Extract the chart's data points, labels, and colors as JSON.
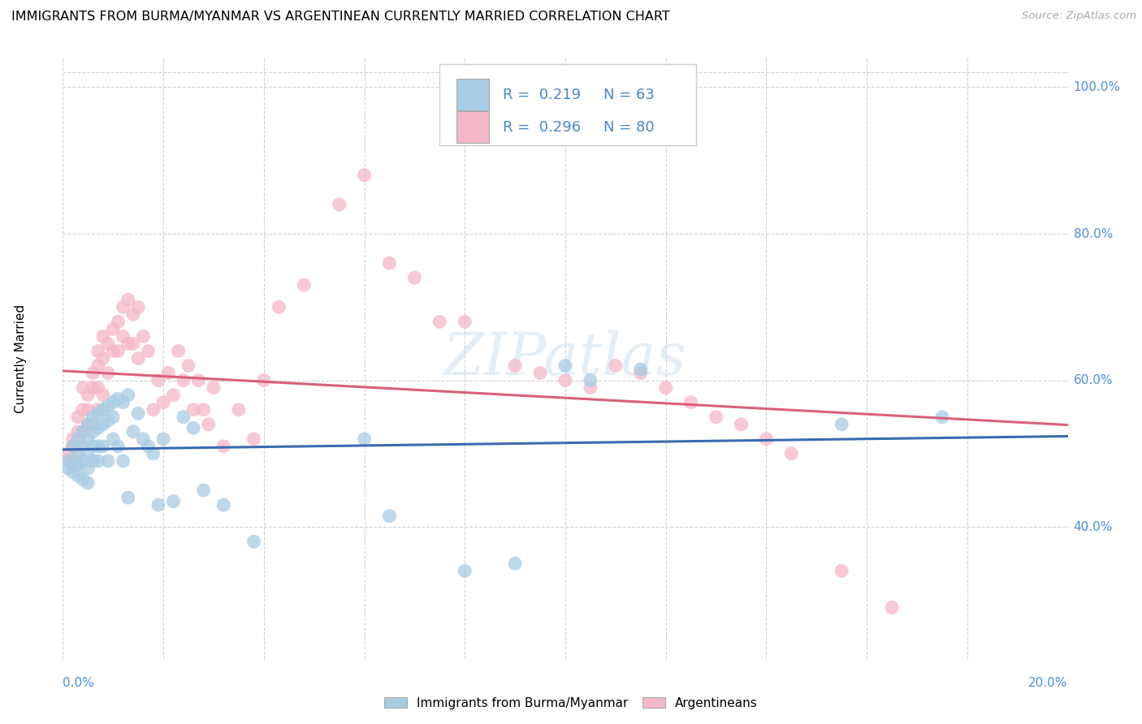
{
  "title": "IMMIGRANTS FROM BURMA/MYANMAR VS ARGENTINEAN CURRENTLY MARRIED CORRELATION CHART",
  "source": "Source: ZipAtlas.com",
  "ylabel": "Currently Married",
  "ytick_values": [
    0.4,
    0.6,
    0.8,
    1.0
  ],
  "ytick_labels": [
    "40.0%",
    "60.0%",
    "80.0%",
    "100.0%"
  ],
  "xmin": 0.0,
  "xmax": 0.2,
  "ymin": 0.22,
  "ymax": 1.04,
  "legend_label1": "Immigrants from Burma/Myanmar",
  "legend_label2": "Argentineans",
  "blue_color": "#a8cce4",
  "pink_color": "#f4b8c8",
  "blue_line_color": "#3a6baf",
  "pink_line_color": "#d9607a",
  "legend_text_color": "#4a86c8",
  "right_axis_color": "#4a90d9",
  "watermark_color": "#c8dff0",
  "blue_x": [
    0.001,
    0.001,
    0.002,
    0.002,
    0.002,
    0.003,
    0.003,
    0.003,
    0.003,
    0.004,
    0.004,
    0.004,
    0.004,
    0.005,
    0.005,
    0.005,
    0.005,
    0.005,
    0.006,
    0.006,
    0.006,
    0.006,
    0.007,
    0.007,
    0.007,
    0.007,
    0.008,
    0.008,
    0.008,
    0.009,
    0.009,
    0.009,
    0.01,
    0.01,
    0.01,
    0.011,
    0.011,
    0.012,
    0.012,
    0.013,
    0.013,
    0.014,
    0.015,
    0.016,
    0.017,
    0.018,
    0.019,
    0.02,
    0.022,
    0.024,
    0.026,
    0.028,
    0.032,
    0.038,
    0.06,
    0.065,
    0.08,
    0.09,
    0.1,
    0.105,
    0.115,
    0.155,
    0.175
  ],
  "blue_y": [
    0.49,
    0.48,
    0.51,
    0.485,
    0.475,
    0.52,
    0.5,
    0.485,
    0.47,
    0.53,
    0.51,
    0.49,
    0.465,
    0.54,
    0.52,
    0.5,
    0.48,
    0.46,
    0.55,
    0.53,
    0.51,
    0.49,
    0.555,
    0.535,
    0.51,
    0.49,
    0.56,
    0.54,
    0.51,
    0.565,
    0.545,
    0.49,
    0.57,
    0.55,
    0.52,
    0.575,
    0.51,
    0.57,
    0.49,
    0.58,
    0.44,
    0.53,
    0.555,
    0.52,
    0.51,
    0.5,
    0.43,
    0.52,
    0.435,
    0.55,
    0.535,
    0.45,
    0.43,
    0.38,
    0.52,
    0.415,
    0.34,
    0.35,
    0.62,
    0.6,
    0.615,
    0.54,
    0.55
  ],
  "pink_x": [
    0.001,
    0.001,
    0.002,
    0.002,
    0.002,
    0.003,
    0.003,
    0.003,
    0.003,
    0.004,
    0.004,
    0.004,
    0.005,
    0.005,
    0.005,
    0.006,
    0.006,
    0.006,
    0.007,
    0.007,
    0.007,
    0.007,
    0.008,
    0.008,
    0.008,
    0.009,
    0.009,
    0.01,
    0.01,
    0.011,
    0.011,
    0.012,
    0.012,
    0.013,
    0.013,
    0.014,
    0.014,
    0.015,
    0.015,
    0.016,
    0.017,
    0.018,
    0.019,
    0.02,
    0.021,
    0.022,
    0.023,
    0.024,
    0.025,
    0.026,
    0.027,
    0.028,
    0.029,
    0.03,
    0.032,
    0.035,
    0.038,
    0.04,
    0.043,
    0.048,
    0.055,
    0.06,
    0.065,
    0.07,
    0.075,
    0.08,
    0.09,
    0.095,
    0.1,
    0.105,
    0.11,
    0.115,
    0.12,
    0.125,
    0.13,
    0.135,
    0.14,
    0.145,
    0.155,
    0.165
  ],
  "pink_y": [
    0.5,
    0.49,
    0.51,
    0.52,
    0.49,
    0.55,
    0.53,
    0.51,
    0.49,
    0.59,
    0.56,
    0.53,
    0.58,
    0.56,
    0.54,
    0.61,
    0.59,
    0.54,
    0.64,
    0.62,
    0.59,
    0.56,
    0.66,
    0.63,
    0.58,
    0.65,
    0.61,
    0.67,
    0.64,
    0.68,
    0.64,
    0.7,
    0.66,
    0.71,
    0.65,
    0.69,
    0.65,
    0.7,
    0.63,
    0.66,
    0.64,
    0.56,
    0.6,
    0.57,
    0.61,
    0.58,
    0.64,
    0.6,
    0.62,
    0.56,
    0.6,
    0.56,
    0.54,
    0.59,
    0.51,
    0.56,
    0.52,
    0.6,
    0.7,
    0.73,
    0.84,
    0.88,
    0.76,
    0.74,
    0.68,
    0.68,
    0.62,
    0.61,
    0.6,
    0.59,
    0.62,
    0.61,
    0.59,
    0.57,
    0.55,
    0.54,
    0.52,
    0.5,
    0.34,
    0.29
  ]
}
